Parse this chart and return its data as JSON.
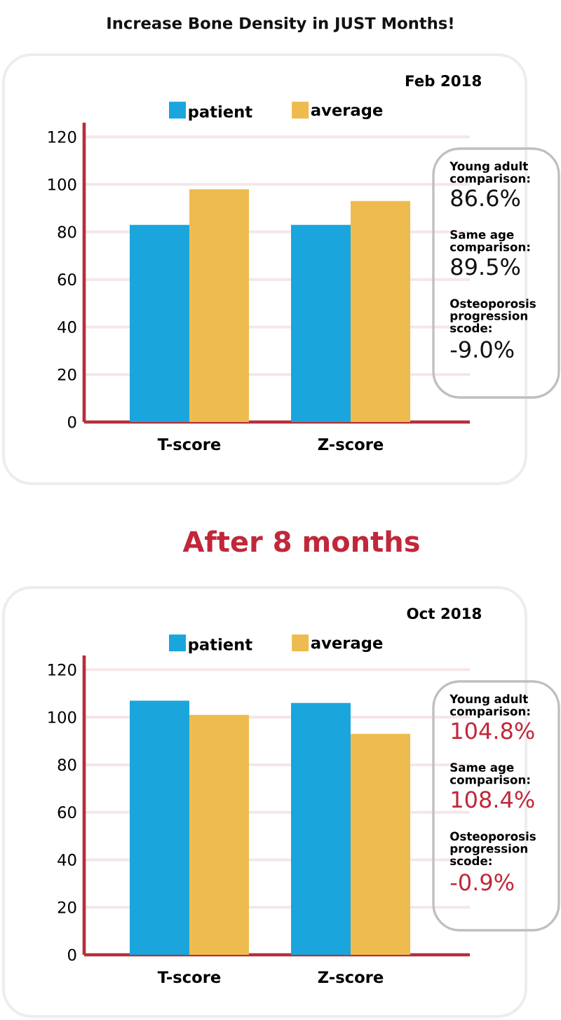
{
  "chart_data": [
    {
      "type": "bar",
      "title": "Increase Bone Density in JUST Months!",
      "subtitle": "Feb 2018",
      "categories": [
        "T-score",
        "Z-score"
      ],
      "series": [
        {
          "name": "patient",
          "color": "#1aa6dc",
          "values": [
            83,
            83
          ]
        },
        {
          "name": "average",
          "color": "#eebb4f",
          "values": [
            98,
            93
          ]
        }
      ],
      "ylim": [
        0,
        126
      ],
      "yticks": [
        0,
        20,
        40,
        60,
        80,
        100,
        120
      ],
      "grid": "y",
      "legend": "top"
    },
    {
      "type": "other",
      "color": "#111111",
      "annotations": [
        "Young adult comparison:",
        "86.6%",
        "Same age comparison:",
        "89.5%",
        "Osteoporosis progression scode:",
        "-9.0%"
      ]
    },
    {
      "type": "bar",
      "title": "After 8 months",
      "subtitle": "Oct 2018",
      "categories": [
        "T-score",
        "Z-score"
      ],
      "series": [
        {
          "name": "patient",
          "color": "#1aa6dc",
          "values": [
            107,
            106
          ]
        },
        {
          "name": "average",
          "color": "#eebb4f",
          "values": [
            101,
            93
          ]
        }
      ],
      "ylim": [
        0,
        126
      ],
      "yticks": [
        0,
        20,
        40,
        60,
        80,
        100,
        120
      ],
      "grid": "y",
      "legend": "top"
    },
    {
      "type": "other",
      "color": "#c0283a",
      "annotations": [
        "Young adult comparison:",
        "104.8%",
        "Same age comparison:",
        "108.4%",
        "Osteoporosis progression scode:",
        "-0.9%"
      ]
    }
  ]
}
